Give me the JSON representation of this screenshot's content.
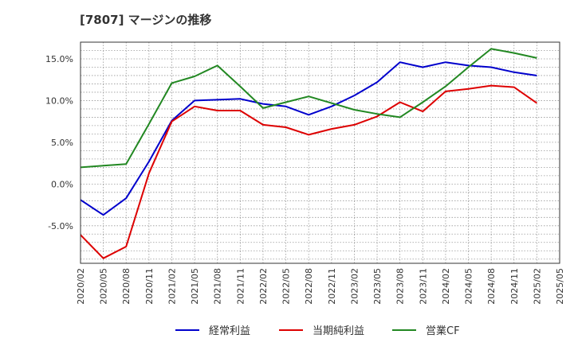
{
  "chart_data": {
    "type": "line",
    "title": "[7807]  マージンの推移",
    "xlabel": "",
    "ylabel": "",
    "categories": [
      "2020/02",
      "2020/05",
      "2020/08",
      "2020/11",
      "2021/02",
      "2021/05",
      "2021/08",
      "2021/11",
      "2022/02",
      "2022/05",
      "2022/08",
      "2022/11",
      "2023/02",
      "2023/05",
      "2023/08",
      "2023/11",
      "2024/02",
      "2024/05",
      "2024/08",
      "2024/11",
      "2025/02",
      "2025/05"
    ],
    "y_ticks": [
      "15.0%",
      "10.0%",
      "5.0%",
      "0.0%",
      "-5.0%"
    ],
    "y_tick_values": [
      15,
      10,
      5,
      0,
      -5
    ],
    "ylim": [
      -9.5,
      17.0
    ],
    "grid": true,
    "legend_position": "bottom",
    "series": [
      {
        "name": "経常利益",
        "color": "#0000cc",
        "values": [
          -1.9,
          -3.7,
          -1.7,
          2.7,
          7.6,
          10.0,
          10.1,
          10.2,
          9.6,
          9.3,
          8.3,
          9.3,
          10.6,
          12.2,
          14.6,
          14.0,
          14.6,
          14.2,
          14.0,
          13.4,
          13.0,
          null
        ]
      },
      {
        "name": "当期純利益",
        "color": "#dd0000",
        "values": [
          -6.1,
          -8.9,
          -7.5,
          1.3,
          7.5,
          9.3,
          8.8,
          8.8,
          7.1,
          6.8,
          5.9,
          6.6,
          7.1,
          8.1,
          9.8,
          8.7,
          11.1,
          11.4,
          11.8,
          11.6,
          9.7,
          null
        ]
      },
      {
        "name": "営業CF",
        "color": "#228822",
        "values": [
          2.0,
          2.2,
          2.4,
          7.2,
          12.1,
          12.9,
          14.2,
          11.7,
          9.1,
          9.8,
          10.5,
          9.7,
          8.9,
          8.4,
          8.0,
          9.8,
          11.7,
          14.0,
          16.2,
          15.7,
          15.1,
          null
        ]
      }
    ]
  }
}
